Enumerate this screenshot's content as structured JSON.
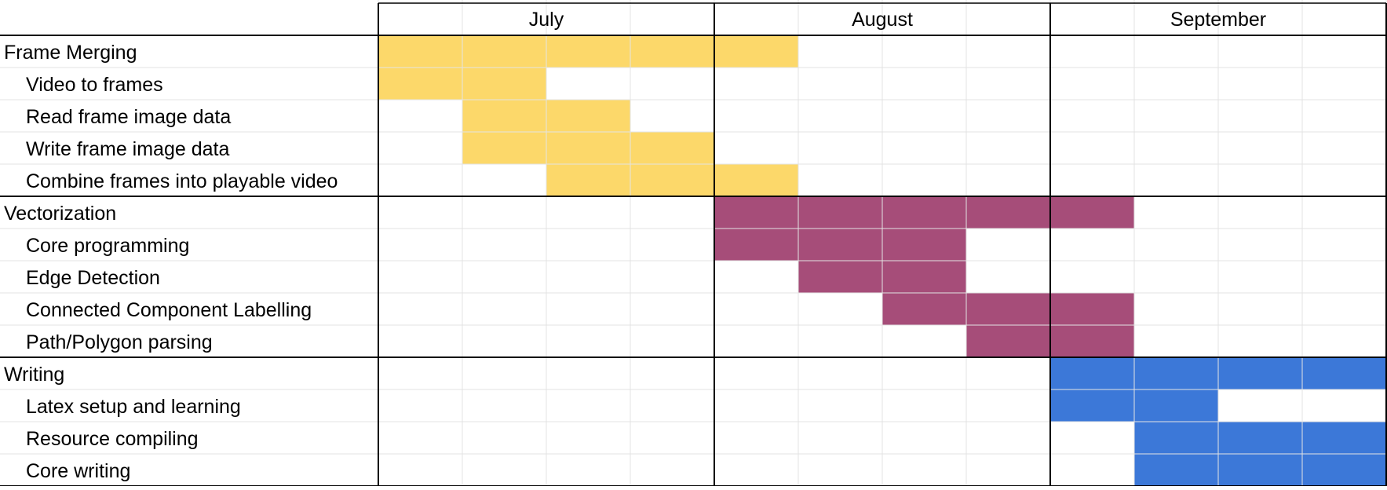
{
  "colors": {
    "frame_merging": "#FCD86A",
    "vectorization": "#A64D79",
    "writing": "#3C78D8",
    "grid_light": "#E3E3E3",
    "grid_dark": "#000000"
  },
  "chart_data": {
    "type": "table",
    "title": "",
    "xlabel": "",
    "ylabel": "",
    "months": [
      "July",
      "August",
      "September"
    ],
    "weeks_per_month": 4,
    "x_range_weeks": [
      0,
      12
    ],
    "rows": [
      {
        "label": "Frame Merging",
        "level": 0,
        "group": "frame_merging",
        "start_week": 0,
        "end_week": 5
      },
      {
        "label": "Video to frames",
        "level": 1,
        "group": "frame_merging",
        "start_week": 0,
        "end_week": 2
      },
      {
        "label": "Read frame image data",
        "level": 1,
        "group": "frame_merging",
        "start_week": 1,
        "end_week": 3
      },
      {
        "label": "Write frame image data",
        "level": 1,
        "group": "frame_merging",
        "start_week": 1,
        "end_week": 4
      },
      {
        "label": "Combine frames into playable video",
        "level": 1,
        "group": "frame_merging",
        "start_week": 2,
        "end_week": 5
      },
      {
        "label": "Vectorization",
        "level": 0,
        "group": "vectorization",
        "start_week": 4,
        "end_week": 9
      },
      {
        "label": "Core programming",
        "level": 1,
        "group": "vectorization",
        "start_week": 4,
        "end_week": 7
      },
      {
        "label": "Edge Detection",
        "level": 1,
        "group": "vectorization",
        "start_week": 5,
        "end_week": 7
      },
      {
        "label": "Connected Component Labelling",
        "level": 1,
        "group": "vectorization",
        "start_week": 6,
        "end_week": 9
      },
      {
        "label": "Path/Polygon parsing",
        "level": 1,
        "group": "vectorization",
        "start_week": 7,
        "end_week": 9
      },
      {
        "label": "Writing",
        "level": 0,
        "group": "writing",
        "start_week": 8,
        "end_week": 12
      },
      {
        "label": "Latex setup and learning",
        "level": 1,
        "group": "writing",
        "start_week": 8,
        "end_week": 10
      },
      {
        "label": "Resource compiling",
        "level": 1,
        "group": "writing",
        "start_week": 9,
        "end_week": 12
      },
      {
        "label": "Core writing",
        "level": 1,
        "group": "writing",
        "start_week": 9,
        "end_week": 12
      }
    ]
  }
}
